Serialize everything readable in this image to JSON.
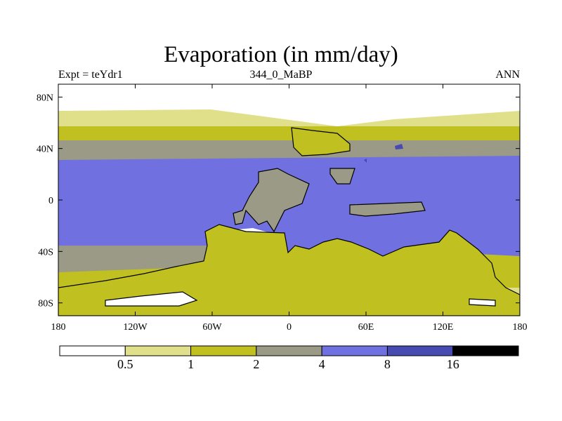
{
  "title": "Evaporation (in mm/day)",
  "subtitle": {
    "left": "Expt = teYdr1",
    "center": "344_0_MaBP",
    "right": "ANN"
  },
  "axes": {
    "x_ticks": [
      "180",
      "120W",
      "60W",
      "0",
      "60E",
      "120E",
      "180"
    ],
    "y_ticks": [
      "80N",
      "40N",
      "0",
      "40S",
      "80S"
    ],
    "x_range": [
      -180,
      180
    ],
    "y_range": [
      -90,
      90
    ]
  },
  "colorbar": {
    "labels": [
      "0.5",
      "1",
      "2",
      "4",
      "8",
      "16"
    ],
    "colors": [
      "#ffffff",
      "#e0e08a",
      "#c0c020",
      "#9a9a86",
      "#7070e0",
      "#474ab0",
      "#000000"
    ]
  },
  "colors": {
    "white": "#ffffff",
    "light": "#e0e08a",
    "olive": "#c0c020",
    "gray": "#9a9a86",
    "blue": "#7070e0",
    "darkblue": "#474ab0",
    "black": "#000000"
  }
}
